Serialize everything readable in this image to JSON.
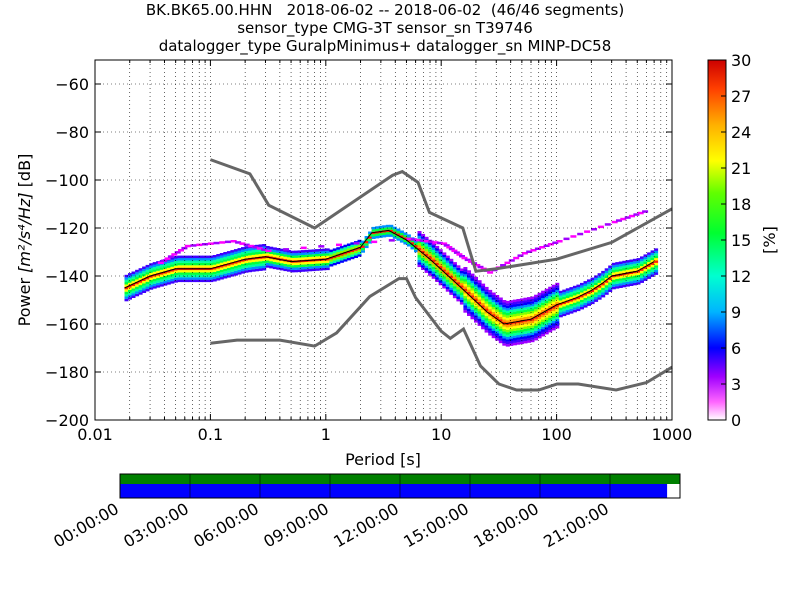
{
  "header": {
    "line1": "BK.BK65.00.HHN   2018-06-02 -- 2018-06-02  (46/46 segments)",
    "line2": "sensor_type CMG-3T sensor_sn T39746",
    "line3": "datalogger_type GuralpMinimus+ datalogger_sn MINP-DC58"
  },
  "chart_data": {
    "type": "heatmap",
    "xlabel": "Period [s]",
    "ylabel_prefix": "Power ",
    "ylabel_units": "[m²/s⁴/Hz]",
    "ylabel_suffix": " [dB]",
    "x_scale": "log",
    "xlim": [
      0.01,
      1000
    ],
    "ylim": [
      -200,
      -50
    ],
    "x_ticks": [
      0.01,
      0.1,
      1,
      10,
      100,
      1000
    ],
    "x_tick_labels": [
      "0.01",
      "0.1",
      "1",
      "10",
      "100",
      "1000"
    ],
    "y_ticks": [
      -200,
      -180,
      -160,
      -140,
      -120,
      -100,
      -80,
      -60
    ],
    "y_tick_labels": [
      "−200",
      "−180",
      "−160",
      "−140",
      "−120",
      "−100",
      "−80",
      "−60"
    ],
    "grid": "dotted, vertical lines at each log minor tick",
    "colorbar": {
      "label": "[%]",
      "range": [
        0,
        30
      ],
      "ticks": [
        "0",
        "3",
        "6",
        "9",
        "12",
        "15",
        "18",
        "21",
        "24",
        "27",
        "30"
      ]
    },
    "noise_model_high": [
      [
        0.1,
        -91.5
      ],
      [
        0.22,
        -97.4
      ],
      [
        0.32,
        -110.5
      ],
      [
        0.8,
        -120
      ],
      [
        3.8,
        -98
      ],
      [
        4.6,
        -96.5
      ],
      [
        6.3,
        -101
      ],
      [
        7.9,
        -113.5
      ],
      [
        15.4,
        -120
      ],
      [
        20,
        -138
      ],
      [
        30,
        -137
      ],
      [
        100,
        -133
      ],
      [
        300,
        -126
      ],
      [
        1000,
        -112
      ]
    ],
    "noise_model_low": [
      [
        0.1,
        -168
      ],
      [
        0.17,
        -166.7
      ],
      [
        0.4,
        -166.7
      ],
      [
        0.8,
        -169.2
      ],
      [
        1.24,
        -163.7
      ],
      [
        2.4,
        -148.6
      ],
      [
        4.3,
        -141.1
      ],
      [
        5,
        -141.1
      ],
      [
        6,
        -149
      ],
      [
        10,
        -163
      ],
      [
        12,
        -166
      ],
      [
        15.6,
        -162.1
      ],
      [
        21.9,
        -177.5
      ],
      [
        31.6,
        -185
      ],
      [
        45,
        -187.5
      ],
      [
        70,
        -187.5
      ],
      [
        101,
        -185
      ],
      [
        154,
        -185
      ],
      [
        328,
        -187.5
      ],
      [
        600,
        -184.4
      ],
      [
        1000,
        -178
      ]
    ],
    "mode_curve": [
      [
        0.018,
        -145
      ],
      [
        0.03,
        -140
      ],
      [
        0.05,
        -137
      ],
      [
        0.1,
        -137
      ],
      [
        0.2,
        -133
      ],
      [
        0.3,
        -132
      ],
      [
        0.5,
        -134
      ],
      [
        1,
        -133
      ],
      [
        2,
        -128
      ],
      [
        2.5,
        -122
      ],
      [
        3.5,
        -121
      ],
      [
        5,
        -125
      ],
      [
        8,
        -133
      ],
      [
        15,
        -145
      ],
      [
        25,
        -155
      ],
      [
        35,
        -160
      ],
      [
        60,
        -158
      ],
      [
        100,
        -152
      ],
      [
        150,
        -149
      ],
      [
        200,
        -146
      ],
      [
        250,
        -143
      ],
      [
        300,
        -140
      ],
      [
        500,
        -138
      ],
      [
        700,
        -134
      ]
    ],
    "data_availability": {
      "time_ticks": [
        "00:00:00",
        "03:00:00",
        "06:00:00",
        "09:00:00",
        "12:00:00",
        "15:00:00",
        "18:00:00",
        "21:00:00"
      ],
      "colors": {
        "processed": "#008000",
        "data": "#0000ff"
      },
      "coverage_fraction": 0.977
    }
  }
}
